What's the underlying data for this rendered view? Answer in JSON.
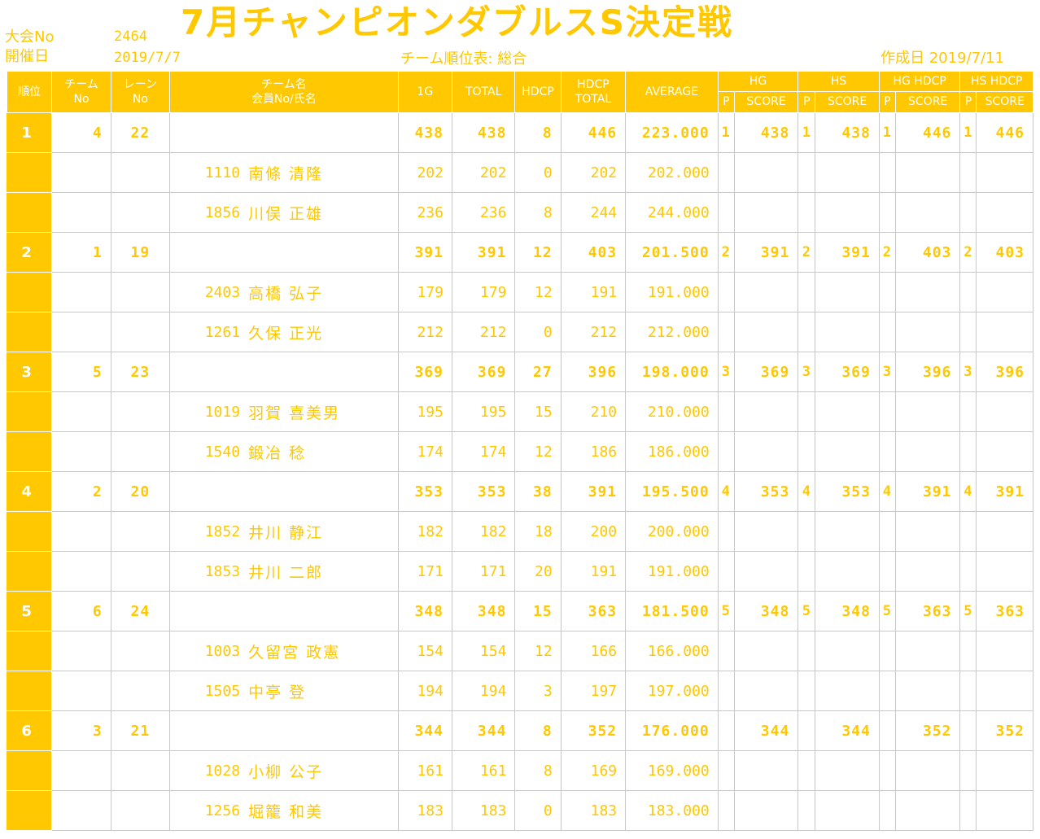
{
  "header": {
    "taikai_label": "大会No",
    "taikai_no": "2464",
    "date_label": "開催日",
    "date": "2019/7/7",
    "title": "7月チャンピオンダブルスS決定戦",
    "subtitle": "チーム順位表: 総合",
    "created": "作成日 2019/7/11"
  },
  "columns": {
    "rank": "順位",
    "team_no_1": "チーム",
    "team_no_2": "No",
    "lane_no_1": "レーン",
    "lane_no_2": "No",
    "team_name_1": "チーム名",
    "team_name_2": "会員No/氏名",
    "g1": "1G",
    "total": "TOTAL",
    "hdcp": "HDCP",
    "hdcp_total_1": "HDCP",
    "hdcp_total_2": "TOTAL",
    "average": "AVERAGE",
    "hg": "HG",
    "hs": "HS",
    "hg_hdcp": "HG HDCP",
    "hs_hdcp": "HS HDCP",
    "p": "P",
    "score": "SCORE"
  },
  "rows": [
    {
      "type": "team",
      "rank": "1",
      "team_no": "4",
      "lane": "22",
      "g1": "438",
      "total": "438",
      "hdcp": "8",
      "hdcp_total": "446",
      "avg": "223.000",
      "hg_p": "1",
      "hg": "438",
      "hs_p": "1",
      "hs": "438",
      "hgh_p": "1",
      "hgh": "446",
      "hsh_p": "1",
      "hsh": "446"
    },
    {
      "type": "member",
      "no": "1110",
      "name": "南條 清隆",
      "g1": "202",
      "total": "202",
      "hdcp": "0",
      "hdcp_total": "202",
      "avg": "202.000"
    },
    {
      "type": "member",
      "no": "1856",
      "name": "川俣 正雄",
      "g1": "236",
      "total": "236",
      "hdcp": "8",
      "hdcp_total": "244",
      "avg": "244.000"
    },
    {
      "type": "team",
      "rank": "2",
      "team_no": "1",
      "lane": "19",
      "g1": "391",
      "total": "391",
      "hdcp": "12",
      "hdcp_total": "403",
      "avg": "201.500",
      "hg_p": "2",
      "hg": "391",
      "hs_p": "2",
      "hs": "391",
      "hgh_p": "2",
      "hgh": "403",
      "hsh_p": "2",
      "hsh": "403"
    },
    {
      "type": "member",
      "no": "2403",
      "name": "高橋 弘子",
      "g1": "179",
      "total": "179",
      "hdcp": "12",
      "hdcp_total": "191",
      "avg": "191.000"
    },
    {
      "type": "member",
      "no": "1261",
      "name": "久保 正光",
      "g1": "212",
      "total": "212",
      "hdcp": "0",
      "hdcp_total": "212",
      "avg": "212.000"
    },
    {
      "type": "team",
      "rank": "3",
      "team_no": "5",
      "lane": "23",
      "g1": "369",
      "total": "369",
      "hdcp": "27",
      "hdcp_total": "396",
      "avg": "198.000",
      "hg_p": "3",
      "hg": "369",
      "hs_p": "3",
      "hs": "369",
      "hgh_p": "3",
      "hgh": "396",
      "hsh_p": "3",
      "hsh": "396"
    },
    {
      "type": "member",
      "no": "1019",
      "name": "羽賀 喜美男",
      "g1": "195",
      "total": "195",
      "hdcp": "15",
      "hdcp_total": "210",
      "avg": "210.000"
    },
    {
      "type": "member",
      "no": "1540",
      "name": "鍛冶 稔",
      "g1": "174",
      "total": "174",
      "hdcp": "12",
      "hdcp_total": "186",
      "avg": "186.000"
    },
    {
      "type": "team",
      "rank": "4",
      "team_no": "2",
      "lane": "20",
      "g1": "353",
      "total": "353",
      "hdcp": "38",
      "hdcp_total": "391",
      "avg": "195.500",
      "hg_p": "4",
      "hg": "353",
      "hs_p": "4",
      "hs": "353",
      "hgh_p": "4",
      "hgh": "391",
      "hsh_p": "4",
      "hsh": "391"
    },
    {
      "type": "member",
      "no": "1852",
      "name": "井川 静江",
      "g1": "182",
      "total": "182",
      "hdcp": "18",
      "hdcp_total": "200",
      "avg": "200.000"
    },
    {
      "type": "member",
      "no": "1853",
      "name": "井川 二郎",
      "g1": "171",
      "total": "171",
      "hdcp": "20",
      "hdcp_total": "191",
      "avg": "191.000"
    },
    {
      "type": "team",
      "rank": "5",
      "team_no": "6",
      "lane": "24",
      "g1": "348",
      "total": "348",
      "hdcp": "15",
      "hdcp_total": "363",
      "avg": "181.500",
      "hg_p": "5",
      "hg": "348",
      "hs_p": "5",
      "hs": "348",
      "hgh_p": "5",
      "hgh": "363",
      "hsh_p": "5",
      "hsh": "363"
    },
    {
      "type": "member",
      "no": "1003",
      "name": "久留宮 政憲",
      "g1": "154",
      "total": "154",
      "hdcp": "12",
      "hdcp_total": "166",
      "avg": "166.000"
    },
    {
      "type": "member",
      "no": "1505",
      "name": "中亭 登",
      "g1": "194",
      "total": "194",
      "hdcp": "3",
      "hdcp_total": "197",
      "avg": "197.000"
    },
    {
      "type": "team",
      "rank": "6",
      "team_no": "3",
      "lane": "21",
      "g1": "344",
      "total": "344",
      "hdcp": "8",
      "hdcp_total": "352",
      "avg": "176.000",
      "hg_p": "",
      "hg": "344",
      "hs_p": "",
      "hs": "344",
      "hgh_p": "",
      "hgh": "352",
      "hsh_p": "",
      "hsh": "352"
    },
    {
      "type": "member",
      "no": "1028",
      "name": "小柳 公子",
      "g1": "161",
      "total": "161",
      "hdcp": "8",
      "hdcp_total": "169",
      "avg": "169.000"
    },
    {
      "type": "member",
      "no": "1256",
      "name": "堀籠 和美",
      "g1": "183",
      "total": "183",
      "hdcp": "0",
      "hdcp_total": "183",
      "avg": "183.000"
    }
  ]
}
